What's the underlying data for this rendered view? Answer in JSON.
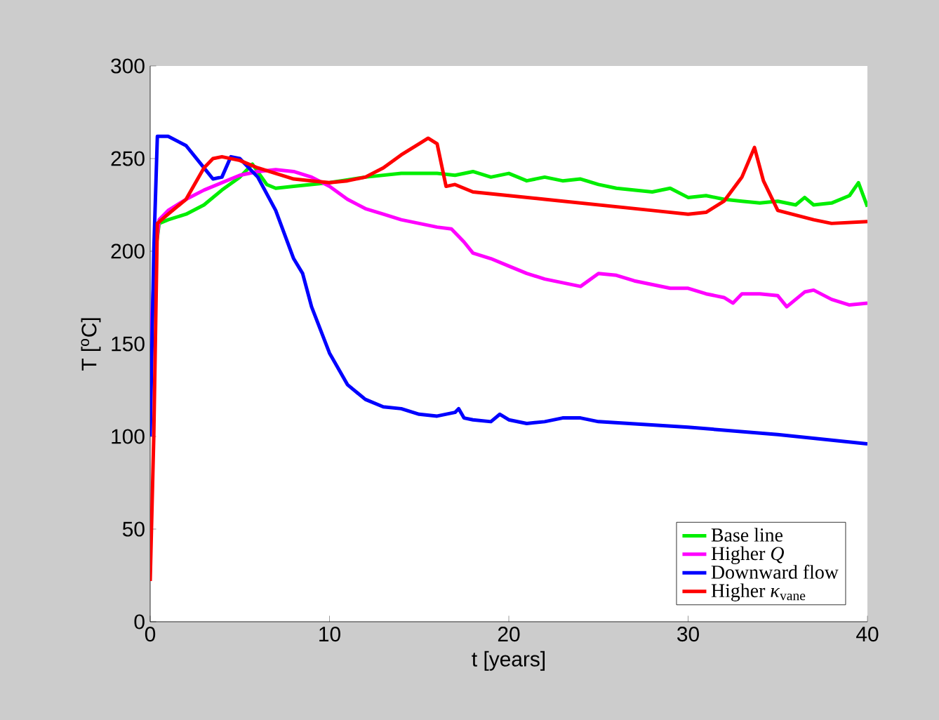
{
  "chart_data": {
    "type": "line",
    "xlabel": "t  [years]",
    "ylabel": "T  [$^{o}$C]",
    "xlim": [
      0,
      40
    ],
    "ylim": [
      0,
      300
    ],
    "xticks": [
      0,
      10,
      20,
      30,
      40
    ],
    "yticks": [
      0,
      50,
      100,
      150,
      200,
      250,
      300
    ],
    "legend": "bottom right",
    "grid": false,
    "marker": "none",
    "line_style": "solid",
    "series": [
      {
        "name": "Base line",
        "color": "#00ee00",
        "x": [
          0,
          0.3,
          0.5,
          1,
          2,
          3,
          4,
          5,
          5.7,
          6.5,
          7,
          8,
          10,
          12,
          14,
          16,
          17,
          18,
          19,
          20,
          21,
          22,
          23,
          24,
          25,
          26,
          27,
          28,
          29,
          30,
          31,
          32,
          33,
          34,
          35,
          36,
          36.5,
          37,
          38,
          39,
          39.5,
          40
        ],
        "values": [
          140,
          200,
          215,
          217,
          220,
          225,
          233,
          240,
          247,
          236,
          234,
          235,
          237,
          240,
          242,
          242,
          241,
          243,
          240,
          242,
          238,
          240,
          238,
          239,
          236,
          234,
          233,
          232,
          234,
          229,
          230,
          228,
          227,
          226,
          227,
          225,
          229,
          225,
          226,
          230,
          237,
          224
        ]
      },
      {
        "name": "Higher *Q*",
        "color": "#ff00ff",
        "x": [
          0,
          0.3,
          0.5,
          1,
          2,
          3,
          4,
          5,
          6,
          7,
          8,
          9,
          10,
          11,
          12,
          13,
          14,
          15,
          16,
          16.8,
          17.5,
          18,
          19,
          20,
          21,
          22,
          23,
          24,
          25,
          26,
          27,
          28,
          29,
          30,
          31,
          32,
          32.5,
          33,
          34,
          35,
          35.5,
          36.5,
          37,
          38,
          39,
          40
        ],
        "values": [
          150,
          200,
          217,
          222,
          228,
          233,
          237,
          241,
          243,
          244,
          243,
          240,
          235,
          228,
          223,
          220,
          217,
          215,
          213,
          212,
          205,
          199,
          196,
          192,
          188,
          185,
          183,
          181,
          188,
          187,
          184,
          182,
          180,
          180,
          177,
          175,
          172,
          177,
          177,
          176,
          170,
          178,
          179,
          174,
          171,
          172
        ]
      },
      {
        "name": "Downward flow",
        "color": "#0000ff",
        "x": [
          0,
          0.2,
          0.4,
          1,
          2,
          3,
          3.5,
          4,
          4.5,
          5,
          6,
          7,
          8,
          8.5,
          9,
          10,
          11,
          12,
          13,
          14,
          15,
          16,
          17,
          17.2,
          17.5,
          18,
          19,
          19.5,
          20,
          21,
          22,
          23,
          24,
          25,
          30,
          35,
          40
        ],
        "values": [
          100,
          200,
          262,
          262,
          257,
          245,
          239,
          240,
          251,
          250,
          240,
          222,
          196,
          188,
          170,
          145,
          128,
          120,
          116,
          115,
          112,
          111,
          113,
          115,
          110,
          109,
          108,
          112,
          109,
          107,
          108,
          110,
          110,
          108,
          105,
          101,
          96
        ]
      },
      {
        "name": "Higher *κ*$_{vane}$",
        "color": "#ff0000",
        "x": [
          0,
          0.2,
          0.4,
          1,
          2,
          3,
          3.5,
          4,
          5,
          6,
          7,
          8,
          9,
          10,
          11,
          12,
          13,
          14,
          15,
          15.5,
          16,
          16.5,
          17,
          18,
          20,
          22,
          25,
          28,
          30,
          31,
          32,
          33,
          33.7,
          34.2,
          35,
          37,
          38,
          40
        ],
        "values": [
          22,
          100,
          215,
          220,
          228,
          245,
          250,
          251,
          249,
          245,
          242,
          239,
          238,
          237,
          238,
          240,
          245,
          252,
          258,
          261,
          258,
          235,
          236,
          232,
          230,
          228,
          225,
          222,
          220,
          221,
          227,
          240,
          256,
          238,
          222,
          217,
          215,
          216
        ]
      }
    ]
  }
}
